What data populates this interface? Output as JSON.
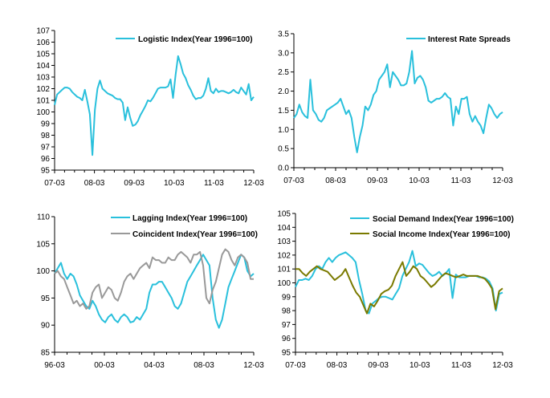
{
  "chart_data": [
    {
      "type": "line",
      "xlabel": "",
      "ylabel": "",
      "x_start": "2007-03",
      "x_end": "2012-03",
      "xticks": [
        "07-03",
        "08-03",
        "09-03",
        "10-03",
        "11-03",
        "12-03"
      ],
      "ylim": [
        95,
        107
      ],
      "yticks": [
        "95",
        "96",
        "97",
        "98",
        "99",
        "100",
        "101",
        "102",
        "103",
        "104",
        "105",
        "106",
        "107"
      ],
      "grid": false,
      "legend": "top-right",
      "series": [
        {
          "name": "Logistic Index(Year 1996=100)",
          "color": "#29c0dc",
          "values": [
            100.6,
            101.5,
            101.7,
            101.9,
            102.1,
            102.1,
            102.0,
            101.7,
            101.5,
            101.3,
            101.2,
            101.0,
            101.9,
            100.9,
            99.8,
            96.3,
            100.2,
            102.0,
            102.7,
            102.0,
            101.8,
            101.6,
            101.5,
            101.4,
            101.2,
            101.1,
            101.1,
            100.8,
            99.3,
            100.4,
            99.5,
            98.8,
            98.9,
            99.2,
            99.7,
            100.1,
            100.5,
            101.0,
            100.9,
            101.2,
            101.6,
            102.0,
            102.1,
            102.1,
            102.1,
            102.2,
            102.8,
            101.2,
            103.2,
            104.8,
            104.1,
            103.3,
            102.9,
            102.3,
            101.9,
            101.4,
            101.1,
            101.2,
            101.2,
            101.4,
            102.0,
            102.9,
            101.8,
            101.6,
            102.0,
            101.7,
            101.8,
            101.8,
            101.7,
            101.6,
            101.7,
            101.9,
            101.7,
            101.6,
            102.1,
            101.8,
            101.5,
            102.4,
            101.0,
            101.3
          ]
        }
      ]
    },
    {
      "type": "line",
      "xlabel": "",
      "ylabel": "",
      "x_start": "2007-03",
      "x_end": "2012-03",
      "xticks": [
        "07-03",
        "08-03",
        "09-03",
        "10-03",
        "11-03",
        "12-03"
      ],
      "ylim": [
        0,
        3.5
      ],
      "yticks": [
        "0.0",
        "0.5",
        "1.0",
        "1.5",
        "2.0",
        "2.5",
        "3.0",
        "3.5"
      ],
      "grid": false,
      "legend": "top-right",
      "series": [
        {
          "name": "Interest Rate Spreads",
          "color": "#29c0dc",
          "values": [
            1.3,
            1.4,
            1.65,
            1.45,
            1.35,
            1.3,
            2.3,
            1.5,
            1.4,
            1.25,
            1.2,
            1.3,
            1.5,
            1.55,
            1.6,
            1.65,
            1.7,
            1.8,
            1.6,
            1.4,
            1.5,
            1.3,
            0.8,
            0.4,
            0.8,
            1.1,
            1.6,
            1.5,
            1.65,
            1.9,
            2.0,
            2.3,
            2.4,
            2.5,
            2.7,
            2.1,
            2.5,
            2.4,
            2.3,
            2.15,
            2.15,
            2.2,
            2.5,
            3.05,
            2.2,
            2.35,
            2.4,
            2.3,
            2.1,
            1.75,
            1.7,
            1.75,
            1.8,
            1.8,
            1.85,
            1.95,
            1.85,
            1.8,
            1.1,
            1.6,
            1.4,
            1.8,
            1.8,
            1.85,
            1.4,
            1.2,
            1.35,
            1.2,
            1.1,
            0.9,
            1.3,
            1.65,
            1.55,
            1.4,
            1.3,
            1.4,
            1.45
          ]
        }
      ]
    },
    {
      "type": "line",
      "xlabel": "",
      "ylabel": "",
      "x_start": "1996-03",
      "x_end": "2012-03",
      "xticks": [
        "96-03",
        "00-03",
        "04-03",
        "08-03",
        "12-03"
      ],
      "ylim": [
        85,
        110
      ],
      "yticks": [
        "85",
        "90",
        "95",
        "100",
        "105",
        "110"
      ],
      "grid": false,
      "legend": "top-right",
      "series": [
        {
          "name": "Lagging Index(Year 1996=100)",
          "color": "#29c0dc",
          "values": [
            99.5,
            100.5,
            101.5,
            99.5,
            98.5,
            99.5,
            99.0,
            97.5,
            95.5,
            94.5,
            93.5,
            93.0,
            94.5,
            93.5,
            92.0,
            91.0,
            90.5,
            91.5,
            92.0,
            91.0,
            90.5,
            91.5,
            92.0,
            91.5,
            90.5,
            90.7,
            91.5,
            91.0,
            92.0,
            93.0,
            96.0,
            97.5,
            97.5,
            98.0,
            98.0,
            97.0,
            96.0,
            95.0,
            93.5,
            93.0,
            94.0,
            96.0,
            98.0,
            99.0,
            100.0,
            101.0,
            102.0,
            103.0,
            102.0,
            101.0,
            95.0,
            91.0,
            89.5,
            91.0,
            94.0,
            97.0,
            98.5,
            100.0,
            101.5,
            103.0,
            102.5,
            100.0,
            99.0,
            99.5
          ]
        },
        {
          "name": "Coincident Index(Year 1996=100)",
          "color": "#999999",
          "values": [
            99.5,
            100.0,
            99.0,
            98.5,
            97.0,
            95.5,
            94.0,
            94.5,
            93.5,
            94.0,
            93.0,
            93.5,
            96.0,
            97.0,
            97.5,
            95.0,
            96.0,
            97.0,
            96.5,
            95.0,
            94.5,
            96.0,
            98.0,
            99.0,
            99.5,
            98.5,
            99.5,
            100.5,
            101.0,
            101.5,
            100.5,
            102.5,
            102.0,
            102.0,
            101.5,
            101.5,
            102.5,
            102.0,
            102.0,
            103.0,
            103.5,
            103.0,
            102.5,
            101.5,
            103.0,
            103.0,
            103.5,
            101.0,
            95.0,
            94.0,
            96.5,
            98.0,
            100.5,
            103.0,
            104.0,
            103.5,
            102.0,
            101.0,
            102.5,
            103.0,
            102.5,
            101.5,
            98.5,
            98.5
          ]
        }
      ]
    },
    {
      "type": "line",
      "xlabel": "",
      "ylabel": "",
      "x_start": "2007-03",
      "x_end": "2012-03",
      "xticks": [
        "07-03",
        "08-03",
        "09-03",
        "10-03",
        "11-03",
        "12-03"
      ],
      "ylim": [
        95,
        105
      ],
      "yticks": [
        "95",
        "96",
        "97",
        "98",
        "99",
        "100",
        "101",
        "102",
        "103",
        "104",
        "105"
      ],
      "grid": false,
      "legend": "top-right",
      "series": [
        {
          "name": "Social Demand Index(Year 1996=100)",
          "color": "#29c0dc",
          "values": [
            99.7,
            100.2,
            100.2,
            100.3,
            100.2,
            100.5,
            101.0,
            101.2,
            101.0,
            101.5,
            101.8,
            101.5,
            101.8,
            102.0,
            102.1,
            102.2,
            102.0,
            101.8,
            101.5,
            100.2,
            99.2,
            98.0,
            97.8,
            98.5,
            98.7,
            98.9,
            99.0,
            99.0,
            98.9,
            98.8,
            99.2,
            99.6,
            100.5,
            101.0,
            101.5,
            102.3,
            101.2,
            101.4,
            101.3,
            101.0,
            100.7,
            100.5,
            100.6,
            100.8,
            100.5,
            100.7,
            101.0,
            98.9,
            100.6,
            100.4,
            100.4,
            100.4,
            100.5,
            100.5,
            100.5,
            100.4,
            100.4,
            100.3,
            100.1,
            99.6,
            98.0,
            99.2,
            99.3
          ]
        },
        {
          "name": "Social Income Index(Year 1996=100)",
          "color": "#7a7a00",
          "values": [
            101.0,
            101.0,
            100.7,
            100.5,
            100.8,
            101.0,
            101.2,
            101.0,
            100.9,
            100.8,
            100.5,
            100.2,
            100.4,
            100.6,
            101.0,
            100.4,
            99.8,
            99.3,
            99.0,
            98.4,
            97.8,
            98.5,
            98.3,
            98.7,
            99.2,
            99.4,
            99.5,
            99.8,
            100.5,
            101.0,
            101.5,
            100.5,
            100.8,
            101.2,
            101.0,
            100.5,
            100.3,
            100.0,
            99.7,
            99.9,
            100.2,
            100.5,
            100.7,
            100.6,
            100.5,
            100.4,
            100.5,
            100.6,
            100.5,
            100.5,
            100.5,
            100.5,
            100.4,
            100.3,
            100.0,
            99.6,
            98.1,
            99.4,
            99.6
          ]
        }
      ]
    }
  ]
}
